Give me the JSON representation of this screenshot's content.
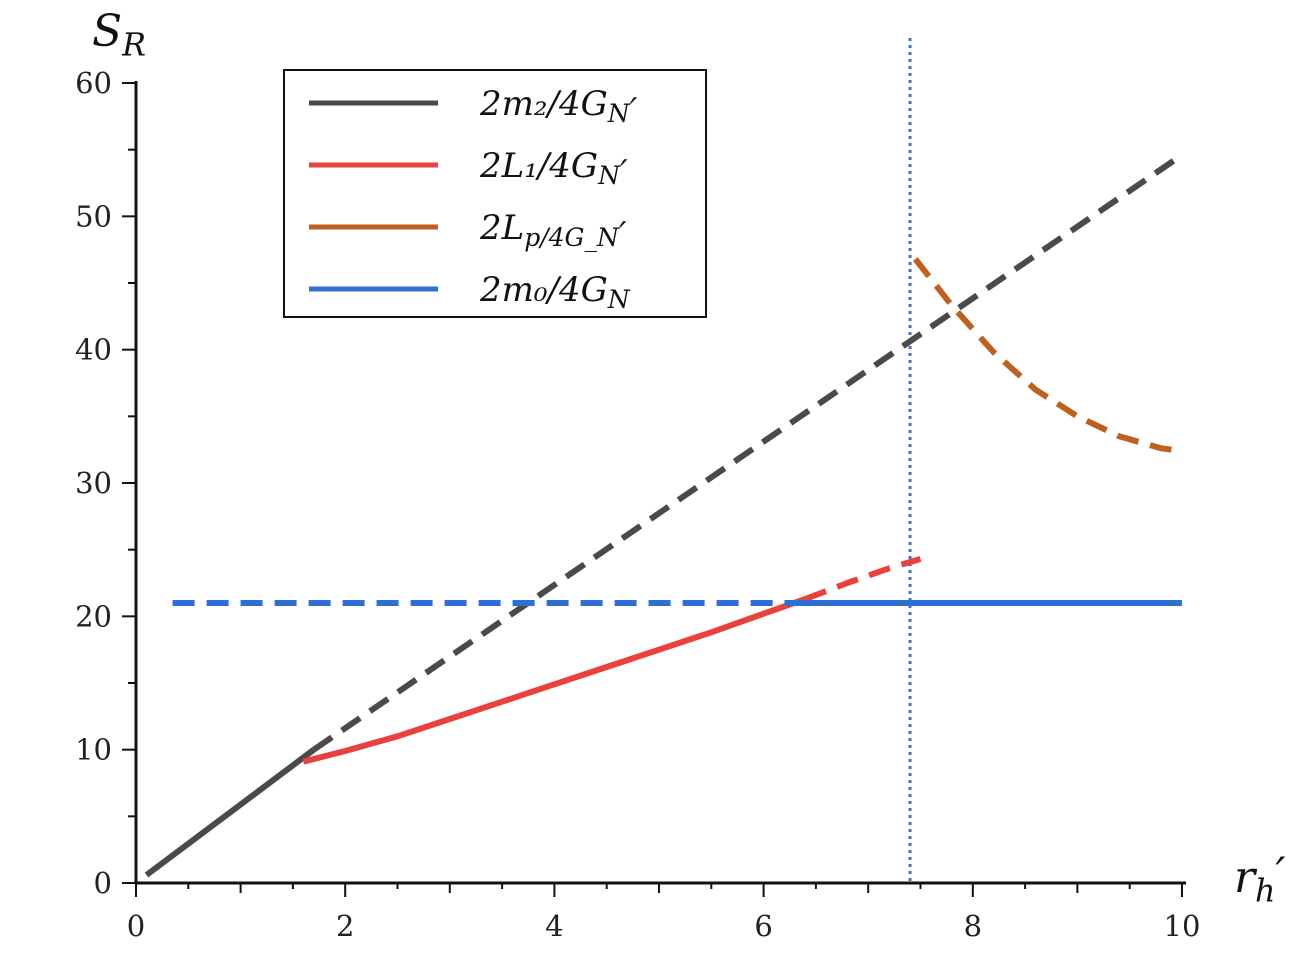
{
  "chart_data": {
    "type": "line",
    "xlabel": "r_h′",
    "ylabel": "S_R",
    "xlim": [
      0,
      10
    ],
    "ylim": [
      0,
      60
    ],
    "x_major_ticks": [
      0,
      2,
      4,
      6,
      8,
      10
    ],
    "y_major_ticks": [
      0,
      10,
      20,
      30,
      40,
      50,
      60
    ],
    "grid": false,
    "legend_position": "top-left",
    "colors": {
      "black": "#4a4a4a",
      "red": "#e8413e",
      "orange": "#c0601e",
      "blue": "#2d6fd2",
      "vline": "#3f6fcf"
    },
    "vertical_line": {
      "x": 7.4,
      "style": "dotted"
    },
    "series": [
      {
        "name": "2m₂/4G_N′",
        "color": "#4a4a4a",
        "segments": [
          {
            "style": "solid",
            "points": [
              [
                0.1,
                0.6
              ],
              [
                1.7,
                10.0
              ]
            ]
          },
          {
            "style": "dashed",
            "points": [
              [
                1.7,
                10.0
              ],
              [
                10.0,
                54.6
              ]
            ]
          }
        ]
      },
      {
        "name": "2L₁/4G_N′",
        "color": "#e8413e",
        "segments": [
          {
            "style": "solid",
            "points": [
              [
                1.6,
                9.1
              ],
              [
                2.0,
                9.9
              ],
              [
                2.5,
                11.0
              ],
              [
                3.0,
                12.3
              ],
              [
                3.5,
                13.6
              ],
              [
                4.0,
                14.9
              ],
              [
                4.5,
                16.2
              ],
              [
                5.0,
                17.5
              ],
              [
                5.5,
                18.8
              ],
              [
                6.0,
                20.2
              ],
              [
                6.4,
                21.3
              ]
            ]
          },
          {
            "style": "dashed",
            "points": [
              [
                6.4,
                21.3
              ],
              [
                6.8,
                22.5
              ],
              [
                7.2,
                23.6
              ],
              [
                7.5,
                24.3
              ]
            ]
          }
        ]
      },
      {
        "name": "2L_p/4G_N′",
        "color": "#c0601e",
        "segments": [
          {
            "style": "dashed",
            "points": [
              [
                7.45,
                46.8
              ],
              [
                7.8,
                43.3
              ],
              [
                8.2,
                39.8
              ],
              [
                8.6,
                37.0
              ],
              [
                9.0,
                35.0
              ],
              [
                9.4,
                33.5
              ],
              [
                9.8,
                32.6
              ],
              [
                10.0,
                32.4
              ]
            ]
          }
        ]
      },
      {
        "name": "2m₀/4G_N",
        "color": "#2d6fd2",
        "segments": [
          {
            "style": "dashed",
            "points": [
              [
                0.35,
                21.0
              ],
              [
                6.2,
                21.0
              ]
            ]
          },
          {
            "style": "solid",
            "points": [
              [
                6.2,
                21.0
              ],
              [
                10.0,
                21.0
              ]
            ]
          }
        ]
      }
    ]
  }
}
